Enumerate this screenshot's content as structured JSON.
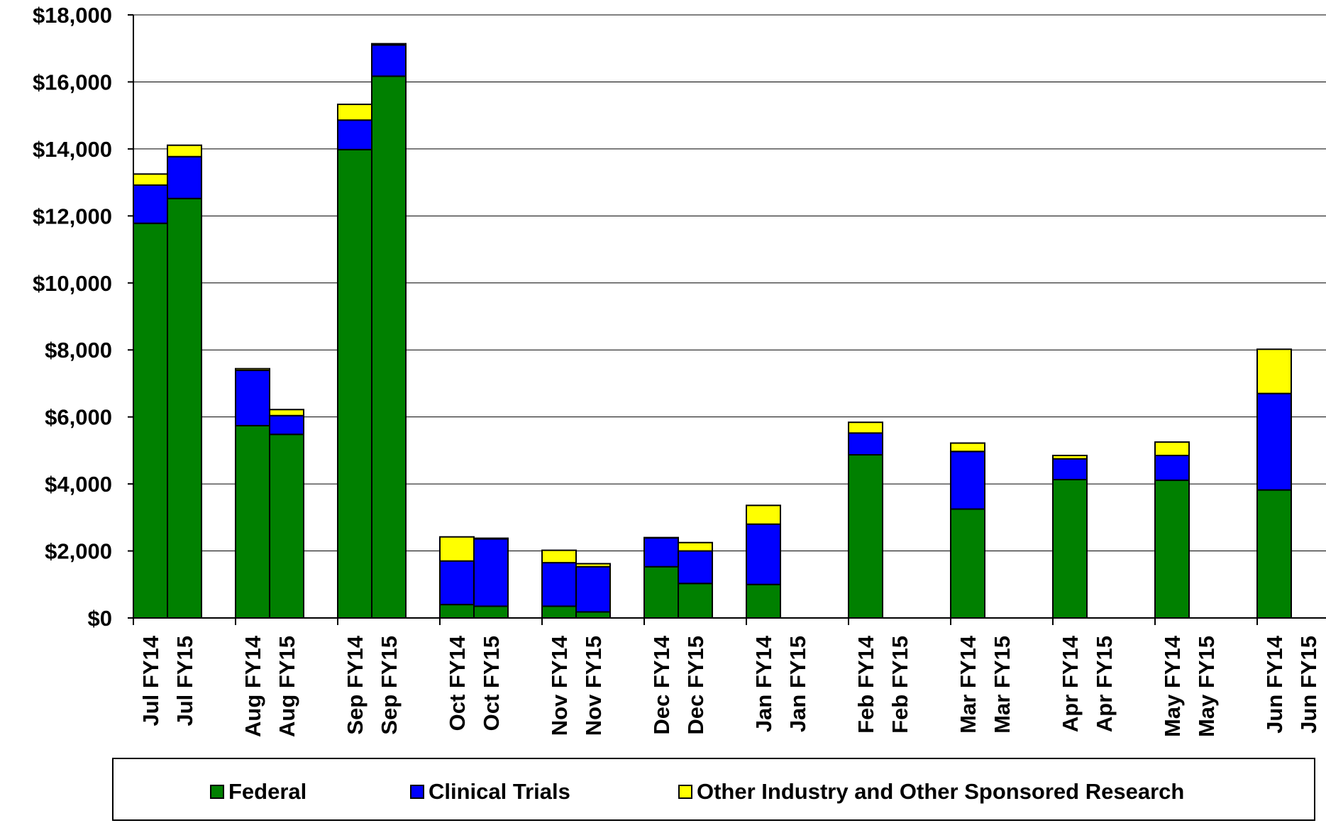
{
  "chart_data": {
    "type": "bar",
    "stacked": true,
    "title": "",
    "xlabel": "",
    "ylabel": "",
    "ylim": [
      0,
      18000
    ],
    "y_ticks": [
      "$0",
      "$2,000",
      "$4,000",
      "$6,000",
      "$8,000",
      "$10,000",
      "$12,000",
      "$14,000",
      "$16,000",
      "$18,000"
    ],
    "grid": true,
    "legend_position": "bottom",
    "categories": [
      "Jul FY14",
      "Jul FY15",
      "Aug FY14",
      "Aug FY15",
      "Sep FY14",
      "Sep FY15",
      "Oct FY14",
      "Oct FY15",
      "Nov FY14",
      "Nov FY15",
      "Dec FY14",
      "Dec FY15",
      "Jan FY14",
      "Jan FY15",
      "Feb FY14",
      "Feb FY15",
      "Mar FY14",
      "Mar FY15",
      "Apr FY14",
      "Apr FY15",
      "May FY14",
      "May FY15",
      "Jun FY14",
      "Jun FY15"
    ],
    "series": [
      {
        "name": "Federal",
        "color": "#008000",
        "values": [
          11780,
          12520,
          5740,
          5480,
          13980,
          16170,
          400,
          350,
          350,
          180,
          1530,
          1030,
          1000,
          0,
          4870,
          0,
          3250,
          0,
          4130,
          0,
          4110,
          0,
          3820,
          0
        ]
      },
      {
        "name": "Clinical Trials",
        "color": "#0000FF",
        "values": [
          1140,
          1250,
          1650,
          560,
          880,
          930,
          1300,
          2010,
          1300,
          1350,
          860,
          970,
          1800,
          0,
          650,
          0,
          1720,
          0,
          620,
          0,
          740,
          0,
          2880,
          0
        ]
      },
      {
        "name": "Other Industry and Other Sponsored Research",
        "color": "#FFFF00",
        "values": [
          330,
          340,
          50,
          180,
          470,
          40,
          720,
          20,
          370,
          90,
          10,
          250,
          560,
          0,
          320,
          0,
          250,
          0,
          100,
          0,
          400,
          0,
          1320,
          0
        ]
      }
    ]
  }
}
